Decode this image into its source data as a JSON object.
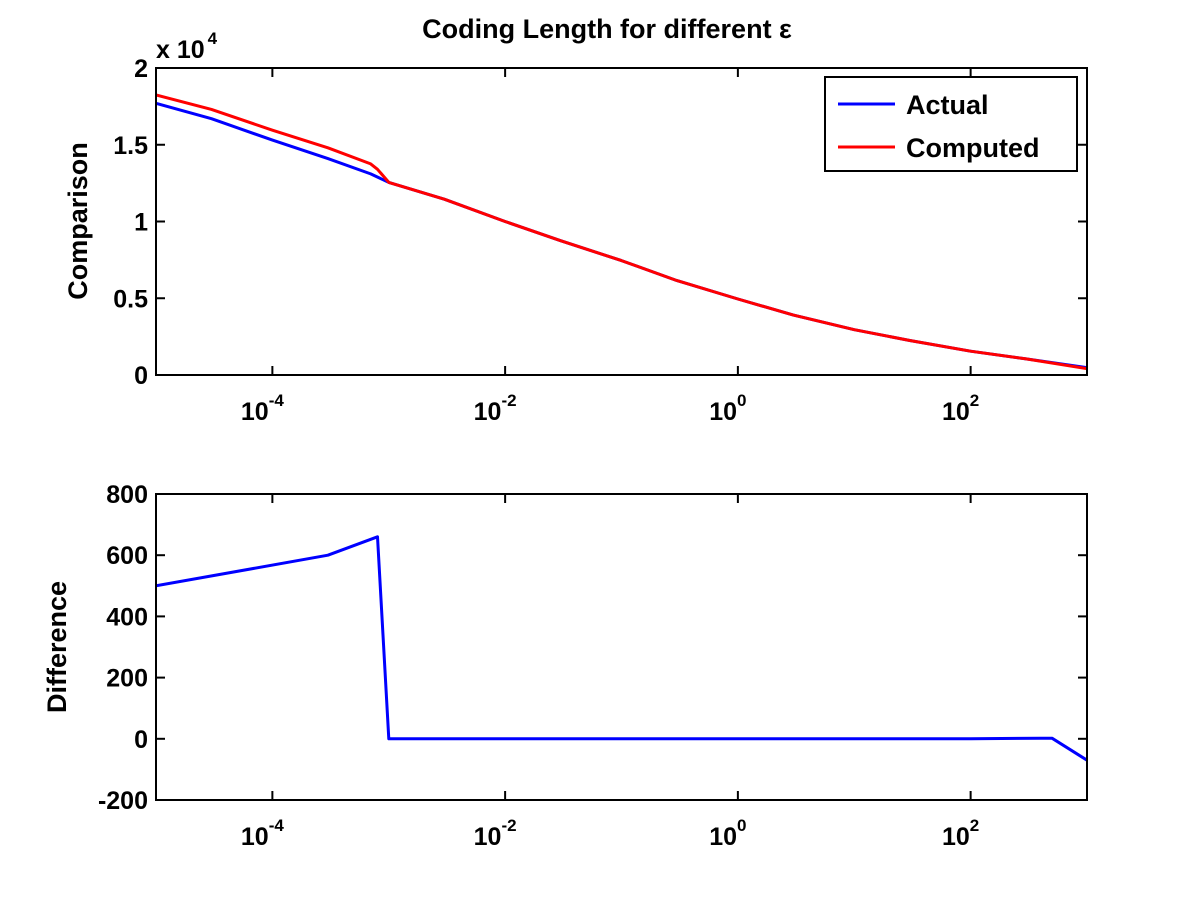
{
  "figure": {
    "title": "Coding Length for different ε"
  },
  "colors": {
    "actual": "#0000ff",
    "computed": "#ff0000",
    "axes": "#000000",
    "background": "#ffffff"
  },
  "chart_data": [
    {
      "type": "line",
      "title": "Coding Length for different ε",
      "xlabel": "",
      "ylabel": "Comparison",
      "xscale": "log",
      "xlim": [
        1e-05,
        1000
      ],
      "ylim": [
        0,
        20000
      ],
      "y_multiplier_label": {
        "base": "x 10",
        "exp": "4"
      },
      "xticks": [
        {
          "value": 0.0001,
          "base": "10",
          "exp": "-4"
        },
        {
          "value": 0.01,
          "base": "10",
          "exp": "-2"
        },
        {
          "value": 1,
          "base": "10",
          "exp": "0"
        },
        {
          "value": 100,
          "base": "10",
          "exp": "2"
        }
      ],
      "yticks": [
        {
          "value": 0,
          "label": "0"
        },
        {
          "value": 5000,
          "label": "0.5"
        },
        {
          "value": 10000,
          "label": "1"
        },
        {
          "value": 15000,
          "label": "1.5"
        },
        {
          "value": 20000,
          "label": "2"
        }
      ],
      "grid": false,
      "legend": {
        "position": "top-right",
        "entries": [
          "Actual",
          "Computed"
        ]
      },
      "series": [
        {
          "name": "Actual",
          "color": "#0000ff",
          "x": [
            1e-05,
            3e-05,
            0.0001,
            0.0003,
            0.0007,
            0.001,
            0.003,
            0.01,
            0.03,
            0.1,
            0.3,
            1,
            3,
            10,
            30,
            100,
            300,
            1000
          ],
          "y": [
            17700,
            16700,
            15300,
            14100,
            13100,
            12550,
            11450,
            10000,
            8750,
            7450,
            6150,
            4950,
            3900,
            2950,
            2250,
            1550,
            1050,
            480
          ]
        },
        {
          "name": "Computed",
          "color": "#ff0000",
          "x": [
            1e-05,
            3e-05,
            0.0001,
            0.0003,
            0.0007,
            0.0008,
            0.001,
            0.003,
            0.01,
            0.03,
            0.1,
            0.3,
            1,
            3,
            10,
            30,
            100,
            300,
            1000
          ],
          "y": [
            18250,
            17300,
            15950,
            14800,
            13750,
            13400,
            12550,
            11450,
            10000,
            8750,
            7450,
            6150,
            4950,
            3900,
            2950,
            2250,
            1550,
            1050,
            420
          ]
        }
      ]
    },
    {
      "type": "line",
      "title": "",
      "xlabel": "",
      "ylabel": "Difference",
      "xscale": "log",
      "xlim": [
        1e-05,
        1000
      ],
      "ylim": [
        -200,
        800
      ],
      "xticks": [
        {
          "value": 0.0001,
          "base": "10",
          "exp": "-4"
        },
        {
          "value": 0.01,
          "base": "10",
          "exp": "-2"
        },
        {
          "value": 1,
          "base": "10",
          "exp": "0"
        },
        {
          "value": 100,
          "base": "10",
          "exp": "2"
        }
      ],
      "yticks": [
        {
          "value": -200,
          "label": "-200"
        },
        {
          "value": 0,
          "label": "0"
        },
        {
          "value": 200,
          "label": "200"
        },
        {
          "value": 400,
          "label": "400"
        },
        {
          "value": 600,
          "label": "600"
        },
        {
          "value": 800,
          "label": "800"
        }
      ],
      "grid": false,
      "series": [
        {
          "color": "#0000ff",
          "x": [
            1e-05,
            0.0003,
            0.0008,
            0.001,
            0.01,
            1,
            100,
            400,
            500,
            1000
          ],
          "y": [
            500,
            600,
            660,
            0,
            0,
            0,
            0,
            2,
            2,
            -70
          ]
        }
      ]
    }
  ]
}
